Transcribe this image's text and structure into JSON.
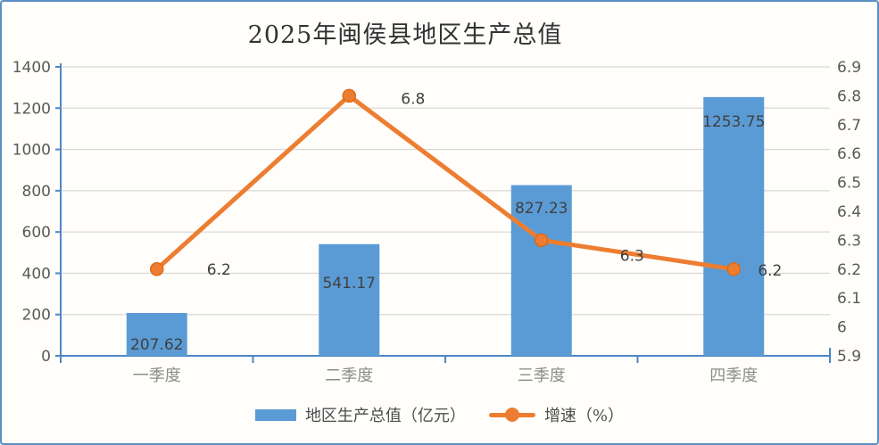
{
  "chart_data": {
    "type": "bar",
    "combo": "bar+line dual-axis",
    "title": "2025年闽侯县地区生产总值",
    "categories": [
      "一季度",
      "二季度",
      "三季度",
      "四季度"
    ],
    "series": [
      {
        "name": "地区生产总值（亿元）",
        "type": "bar",
        "axis": "left",
        "color": "#5B9BD5",
        "values": [
          207.62,
          541.17,
          827.23,
          1253.75
        ],
        "labels": [
          "207.62",
          "541.17",
          "827.23",
          "1253.75"
        ]
      },
      {
        "name": "增速（%）",
        "type": "line",
        "axis": "right",
        "color": "#ED7D31",
        "values": [
          6.2,
          6.8,
          6.3,
          6.2
        ],
        "labels": [
          "6.2",
          "6.8",
          "6.3",
          "6.2"
        ]
      }
    ],
    "left_axis": {
      "min": 0,
      "max": 1400,
      "tick_labels": [
        "0",
        "200",
        "400",
        "600",
        "800",
        "1000",
        "1200",
        "1400"
      ]
    },
    "right_axis": {
      "min": 5.9,
      "max": 6.9,
      "tick_labels": [
        "5.9",
        "6",
        "6.1",
        "6.2",
        "6.3",
        "6.4",
        "6.5",
        "6.6",
        "6.7",
        "6.8",
        "6.9"
      ]
    },
    "grid": true,
    "legend_position": "bottom",
    "colors": {
      "bar": "#5B9BD5",
      "line": "#ED7D31",
      "line_marker_edge": "#DE6A14",
      "axis_line": "#4E86C6",
      "grid_line": "#D9D9D9",
      "tick_text": "#595959",
      "category_text": "#8C8C8C",
      "data_label": "#404040",
      "title_text": "#333333",
      "border": "#5B8EC4",
      "legend_text": "#4D4D4D"
    }
  }
}
